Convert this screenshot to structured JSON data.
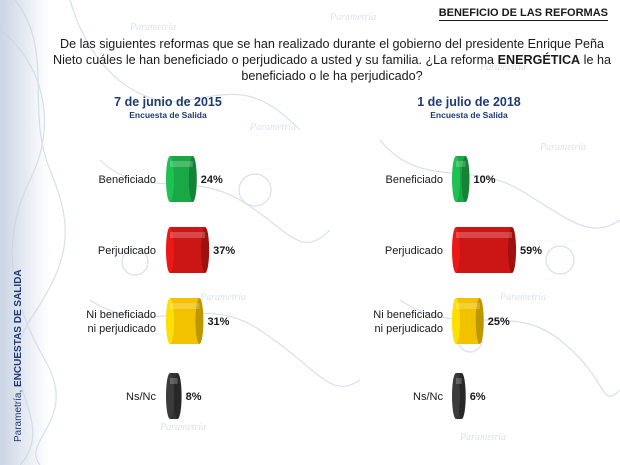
{
  "header": {
    "title": "BENEFICIO DE LAS REFORMAS"
  },
  "question": {
    "text_before": "De las siguientes reformas que se han realizado durante el gobierno del presidente Enrique Peña Nieto cuáles le han beneficiado o perjudicado a usted y su familia. ¿La reforma ",
    "text_bold": "ENERGÉTICA",
    "text_after": " le ha beneficiado o le ha perjudicado?"
  },
  "sidebar": {
    "brand": "Parametría, ",
    "section": "ENCUESTAS DE SALIDA"
  },
  "colors": {
    "Beneficiado": "#1aa847",
    "Perjudicado": "#cc1515",
    "Ni beneficiado ni perjudicado": "#f2c200",
    "Ns/Nc": "#333333"
  },
  "chart_data": [
    {
      "type": "bar",
      "orientation": "horizontal",
      "title": "7 de junio de 2015",
      "subtitle": "Encuesta de Salida",
      "categories": [
        "Beneficiado",
        "Perjudicado",
        "Ni beneficiado ni perjudicado",
        "Ns/Nc"
      ],
      "category_lines": [
        [
          "Beneficiado"
        ],
        [
          "Perjudicado"
        ],
        [
          "Ni beneficiado",
          "ni perjudicado"
        ],
        [
          "Ns/Nc"
        ]
      ],
      "values": [
        24,
        37,
        31,
        8
      ],
      "value_labels": [
        "24%",
        "37%",
        "31%",
        "8%"
      ],
      "xlim": [
        0,
        100
      ]
    },
    {
      "type": "bar",
      "orientation": "horizontal",
      "title": "1 de julio de 2018",
      "subtitle": "Encuesta de Salida",
      "categories": [
        "Beneficiado",
        "Perjudicado",
        "Ni beneficiado ni perjudicado",
        "Ns/Nc"
      ],
      "category_lines": [
        [
          "Beneficiado"
        ],
        [
          "Perjudicado"
        ],
        [
          "Ni beneficiado",
          "ni perjudicado"
        ],
        [
          "Ns/Nc"
        ]
      ],
      "values": [
        10,
        59,
        25,
        6
      ],
      "value_labels": [
        "10%",
        "59%",
        "25%",
        "6%"
      ],
      "xlim": [
        0,
        100
      ]
    }
  ]
}
